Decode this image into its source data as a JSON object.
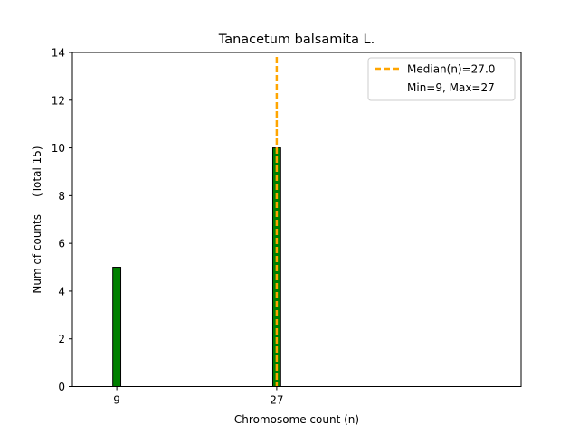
{
  "chart_data": {
    "type": "bar",
    "title": "Tanacetum balsamita L.",
    "xlabel": "Chromosome count (n)",
    "ylabel": "Num of counts     (Total 15)",
    "xlim": [
      4,
      54.5
    ],
    "ylim": [
      0,
      14
    ],
    "yticks": [
      0,
      2,
      4,
      6,
      8,
      10,
      12,
      14
    ],
    "xticks": [
      9,
      27
    ],
    "bars": [
      {
        "x": 9,
        "count": 5
      },
      {
        "x": 27,
        "count": 10
      }
    ],
    "bar_width": 0.9,
    "bar_color": "#008000",
    "median": 27.0,
    "median_color": "#ffa500",
    "legend": {
      "placement": "top-right",
      "median_label": "Median(n)=27.0",
      "range_label": "Min=9, Max=27"
    }
  }
}
